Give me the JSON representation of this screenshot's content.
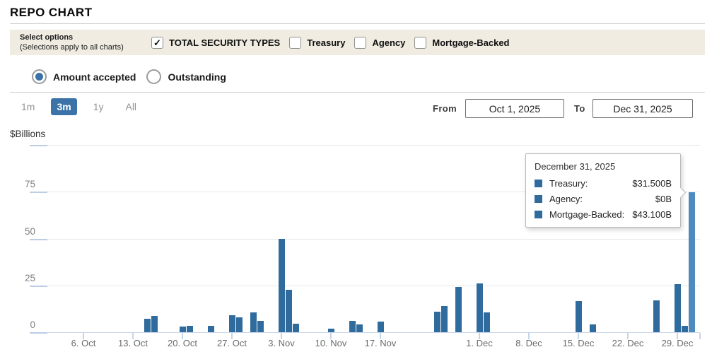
{
  "colors": {
    "accent": "#3b73a9",
    "bar": "#2f6b9c",
    "bar_highlight": "#4c8ac0",
    "filter_bar_bg": "#f0ece2"
  },
  "page": {
    "title": "REPO CHART"
  },
  "filter_bar": {
    "label_line1": "Select options",
    "label_line2": "(Selections apply to all charts)",
    "checkboxes": [
      {
        "label": "TOTAL SECURITY TYPES",
        "checked": true
      },
      {
        "label": "Treasury",
        "checked": false
      },
      {
        "label": "Agency",
        "checked": false
      },
      {
        "label": "Mortgage-Backed",
        "checked": false
      }
    ]
  },
  "view_toggle": {
    "options": [
      {
        "label": "Amount accepted",
        "selected": true
      },
      {
        "label": "Outstanding",
        "selected": false
      }
    ]
  },
  "range_controls": {
    "zoom_buttons": [
      {
        "label": "1m",
        "active": false
      },
      {
        "label": "3m",
        "active": true
      },
      {
        "label": "1y",
        "active": false
      },
      {
        "label": "All",
        "active": false
      }
    ],
    "from_label": "From",
    "from_value": "Oct 1, 2025",
    "to_label": "To",
    "to_value": "Dec 31, 2025"
  },
  "chart_data": {
    "type": "bar",
    "title": "REPO CHART",
    "ylabel": "$Billions",
    "ylim": [
      0,
      100
    ],
    "yticks": [
      0,
      25,
      50,
      75
    ],
    "grid": true,
    "x_range": [
      "Oct 1, 2025",
      "Dec 31, 2025"
    ],
    "xtick_labels": [
      "6. Oct",
      "13. Oct",
      "20. Oct",
      "27. Oct",
      "3. Nov",
      "10. Nov",
      "17. Nov",
      "1. Dec",
      "8. Dec",
      "15. Dec",
      "22. Dec",
      "29. Dec"
    ],
    "points": [
      {
        "date": "Oct 15",
        "value": 7
      },
      {
        "date": "Oct 16",
        "value": 8.5
      },
      {
        "date": "Oct 20",
        "value": 3
      },
      {
        "date": "Oct 21",
        "value": 3.5
      },
      {
        "date": "Oct 24",
        "value": 3.5
      },
      {
        "date": "Oct 27",
        "value": 9
      },
      {
        "date": "Oct 28",
        "value": 8
      },
      {
        "date": "Oct 30",
        "value": 10.5
      },
      {
        "date": "Oct 31",
        "value": 6
      },
      {
        "date": "Nov 3",
        "value": 50
      },
      {
        "date": "Nov 4",
        "value": 22.5
      },
      {
        "date": "Nov 5",
        "value": 4.5
      },
      {
        "date": "Nov 10",
        "value": 2
      },
      {
        "date": "Nov 13",
        "value": 6
      },
      {
        "date": "Nov 14",
        "value": 4
      },
      {
        "date": "Nov 17",
        "value": 5.5
      },
      {
        "date": "Nov 25",
        "value": 11
      },
      {
        "date": "Nov 26",
        "value": 14
      },
      {
        "date": "Nov 28",
        "value": 24
      },
      {
        "date": "Dec 1",
        "value": 26
      },
      {
        "date": "Dec 2",
        "value": 10.5
      },
      {
        "date": "Dec 15",
        "value": 16.5
      },
      {
        "date": "Dec 17",
        "value": 4
      },
      {
        "date": "Dec 26",
        "value": 17
      },
      {
        "date": "Dec 29",
        "value": 25.5
      },
      {
        "date": "Dec 30",
        "value": 3.5
      },
      {
        "date": "Dec 31",
        "value": 74.6,
        "highlighted": true
      }
    ]
  },
  "tooltip": {
    "title": "December 31, 2025",
    "rows": [
      {
        "label": "Treasury:",
        "value": "$31.500B"
      },
      {
        "label": "Agency:",
        "value": "$0B"
      },
      {
        "label": "Mortgage-Backed:",
        "value": "$43.100B"
      }
    ]
  }
}
